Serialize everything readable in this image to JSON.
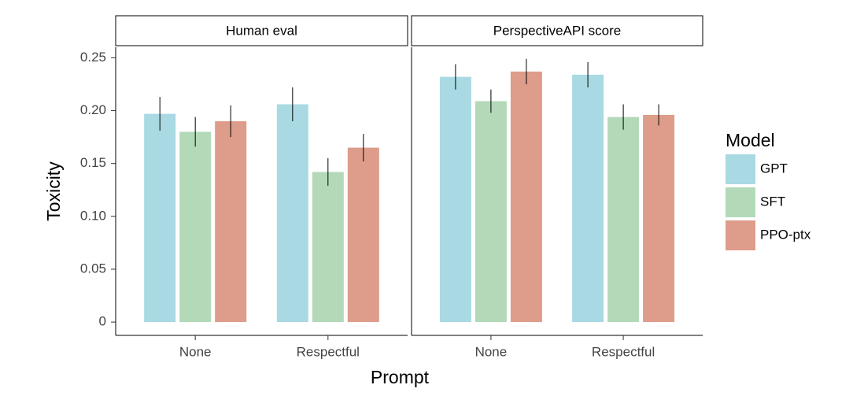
{
  "chart_data": {
    "type": "bar",
    "y_label": "Toxicity",
    "x_label": "Prompt",
    "legend_title": "Model",
    "categories": [
      "None",
      "Respectful"
    ],
    "series": [
      {
        "name": "GPT",
        "color": "#a9d9e3"
      },
      {
        "name": "SFT",
        "color": "#b3d9b9"
      },
      {
        "name": "PPO-ptx",
        "color": "#de9c8b"
      }
    ],
    "ylim": [
      -0.0126,
      0.26
    ],
    "yticks": [
      0,
      0.05,
      {
        "value": 0.1,
        "label": "0.10"
      },
      0.15,
      {
        "value": 0.2,
        "label": "0.20"
      },
      0.25
    ],
    "panels": [
      {
        "title": "Human eval",
        "values": [
          [
            0.197,
            0.206
          ],
          [
            0.18,
            0.142
          ],
          [
            0.19,
            0.165
          ]
        ],
        "errors": [
          [
            0.016,
            0.016
          ],
          [
            0.014,
            0.013
          ],
          [
            0.015,
            0.013
          ]
        ]
      },
      {
        "title": "PerspectiveAPI score",
        "values": [
          [
            0.232,
            0.234
          ],
          [
            0.209,
            0.194
          ],
          [
            0.237,
            0.196
          ]
        ],
        "errors": [
          [
            0.012,
            0.012
          ],
          [
            0.011,
            0.012
          ],
          [
            0.012,
            0.01
          ]
        ]
      }
    ]
  }
}
